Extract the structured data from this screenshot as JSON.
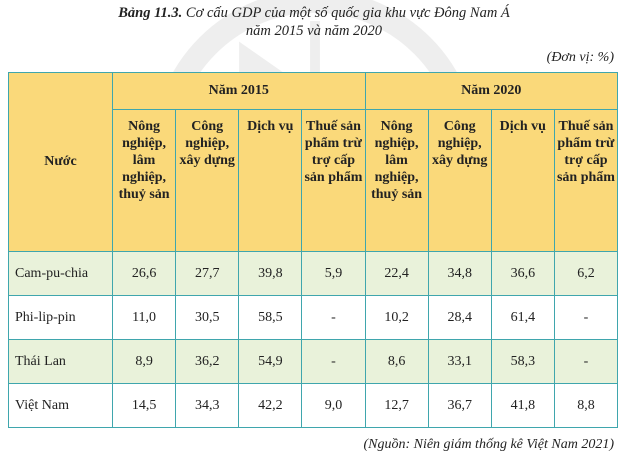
{
  "caption": {
    "label": "Bảng 11.3.",
    "line1": " Cơ cấu GDP của một số quốc gia khu vực Đông Nam Á",
    "line2": "năm 2015 và năm 2020"
  },
  "unit": "(Đơn vị: %)",
  "table": {
    "country_header": "Nước",
    "groups": [
      "Năm 2015",
      "Năm 2020"
    ],
    "subheaders": [
      "Nông nghiệp, lâm nghiệp, thuỷ sản",
      "Công nghiệp, xây dựng",
      "Dịch vụ",
      "Thuế sản phẩm trừ trợ cấp sản phẩm",
      "Nông nghiệp, lâm nghiệp, thuỷ sản",
      "Công nghiệp, xây dựng",
      "Dịch vụ",
      "Thuế sản phẩm trừ trợ cấp sản phẩm"
    ],
    "rows": [
      {
        "country": "Cam-pu-chia",
        "values": [
          "26,6",
          "27,7",
          "39,8",
          "5,9",
          "22,4",
          "34,8",
          "36,6",
          "6,2"
        ]
      },
      {
        "country": "Phi-lip-pin",
        "values": [
          "11,0",
          "30,5",
          "58,5",
          "-",
          "10,2",
          "28,4",
          "61,4",
          "-"
        ]
      },
      {
        "country": "Thái Lan",
        "values": [
          "8,9",
          "36,2",
          "54,9",
          "-",
          "8,6",
          "33,1",
          "58,3",
          "-"
        ]
      },
      {
        "country": "Việt Nam",
        "values": [
          "14,5",
          "34,3",
          "42,2",
          "9,0",
          "12,7",
          "36,7",
          "41,8",
          "8,8"
        ]
      }
    ]
  },
  "source": "(Nguồn: Niên giám thống kê Việt Nam 2021)",
  "colors": {
    "header_bg": "#fad97a",
    "row_shade": "#e9f2da",
    "border": "#3fa6ad"
  }
}
